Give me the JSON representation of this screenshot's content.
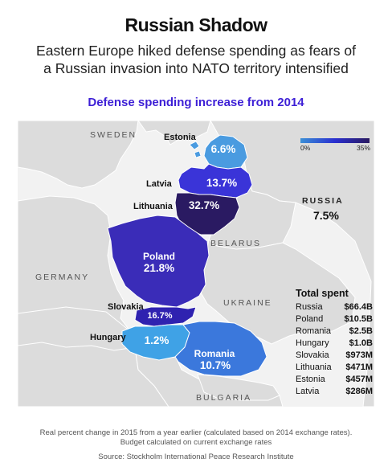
{
  "title": "Russian Shadow",
  "subtitle_line1": "Eastern Europe hiked defense spending as fears of",
  "subtitle_line2": "a Russian invasion into NATO territory intensified",
  "map_title": "Defense spending increase from 2014",
  "legend": {
    "min_label": "0%",
    "max_label": "35%",
    "colors": [
      "#3b8fd6",
      "#2a2fd0",
      "#2a1a60"
    ]
  },
  "background_labels": {
    "sweden": "SWEDEN",
    "germany": "GERMANY",
    "belarus": "BELARUS",
    "ukraine": "UKRAINE",
    "bulgaria": "BULGARIA",
    "russia": "RUSSIA",
    "russia_pct": "7.5%"
  },
  "countries": {
    "estonia": {
      "name": "Estonia",
      "pct": "6.6%",
      "color": "#4a9be0"
    },
    "latvia": {
      "name": "Latvia",
      "pct": "13.7%",
      "color": "#3a34d8"
    },
    "lithuania": {
      "name": "Lithuania",
      "pct": "32.7%",
      "color": "#2a1a62"
    },
    "poland": {
      "name": "Poland",
      "pct": "21.8%",
      "color": "#3a2cb8"
    },
    "slovakia": {
      "name": "Slovakia",
      "pct": "16.7%",
      "color": "#2f22b0"
    },
    "hungary": {
      "name": "Hungary",
      "pct": "1.2%",
      "color": "#3fa2e6"
    },
    "romania": {
      "name": "Romania",
      "pct": "10.7%",
      "color": "#3b78dc"
    }
  },
  "totals": {
    "heading": "Total spent",
    "rows": [
      {
        "country": "Russia",
        "value": "$66.4B"
      },
      {
        "country": "Poland",
        "value": "$10.5B"
      },
      {
        "country": "Romania",
        "value": "$2.5B"
      },
      {
        "country": "Hungary",
        "value": "$1.0B"
      },
      {
        "country": "Slovakia",
        "value": "$973M"
      },
      {
        "country": "Lithuania",
        "value": "$471M"
      },
      {
        "country": "Estonia",
        "value": "$457M"
      },
      {
        "country": "Latvia",
        "value": "$286M"
      }
    ]
  },
  "footnote_line1": "Real percent change in 2015 from a year earlier (calculated based on 2014 exchange rates).",
  "footnote_line2": "Budget calculated on current exchange rates",
  "source": "Source: Stockholm International Peace Research Institute",
  "colors": {
    "land": "#dcdcdc",
    "sea": "#f2f2f2",
    "border": "#ffffff",
    "accent": "#3d1fd6"
  }
}
